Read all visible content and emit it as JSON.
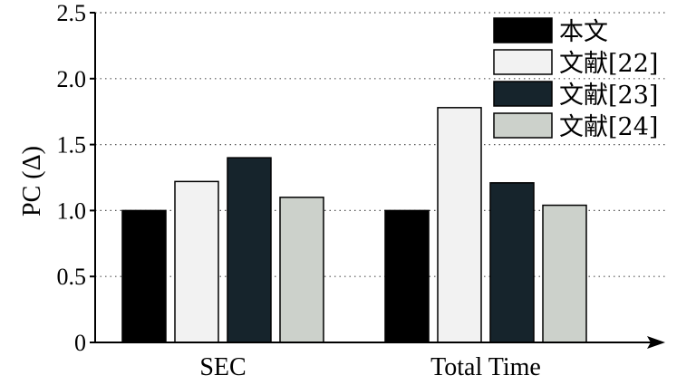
{
  "chart_data": {
    "type": "bar",
    "categories": [
      "SEC",
      "Total Time"
    ],
    "series": [
      {
        "name": "本文",
        "values": [
          1.0,
          1.0
        ],
        "color": "#000000"
      },
      {
        "name": "文献[22]",
        "values": [
          1.22,
          1.78
        ],
        "color": "#f2f2f2"
      },
      {
        "name": "文献[23]",
        "values": [
          1.4,
          1.21
        ],
        "color": "#16242c"
      },
      {
        "name": "文献[24]",
        "values": [
          1.1,
          1.04
        ],
        "color": "#ccd1cb"
      }
    ],
    "title": "",
    "xlabel": "",
    "ylabel": "PC (Δ)",
    "ylim": [
      0,
      2.5
    ],
    "yticks": [
      "0",
      "0.5",
      "1.0",
      "1.5",
      "2.0",
      "2.5"
    ],
    "grid": "horizontal dotted",
    "legend_position": "top-right"
  }
}
